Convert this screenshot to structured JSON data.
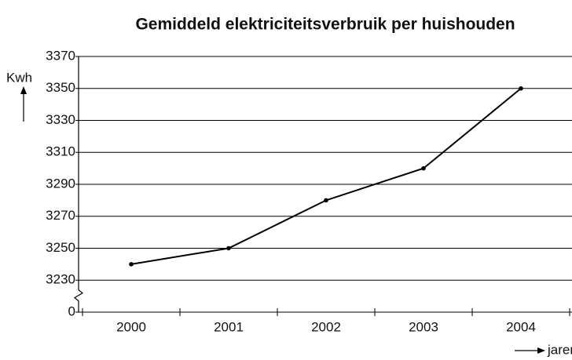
{
  "chart_data": {
    "type": "line",
    "title": "Gemiddeld elektriciteitsverbruik per huishouden",
    "y_label": "Kwh",
    "x_label": "jaren",
    "categories": [
      "2000",
      "2001",
      "2002",
      "2003",
      "2004"
    ],
    "values": [
      3240,
      3250,
      3280,
      3300,
      3350
    ],
    "color": "#000000",
    "ylim": [
      0,
      3370
    ],
    "yticks": [
      0,
      3230,
      3250,
      3270,
      3290,
      3310,
      3330,
      3350,
      3370
    ],
    "axis_break": true,
    "grid": true
  }
}
